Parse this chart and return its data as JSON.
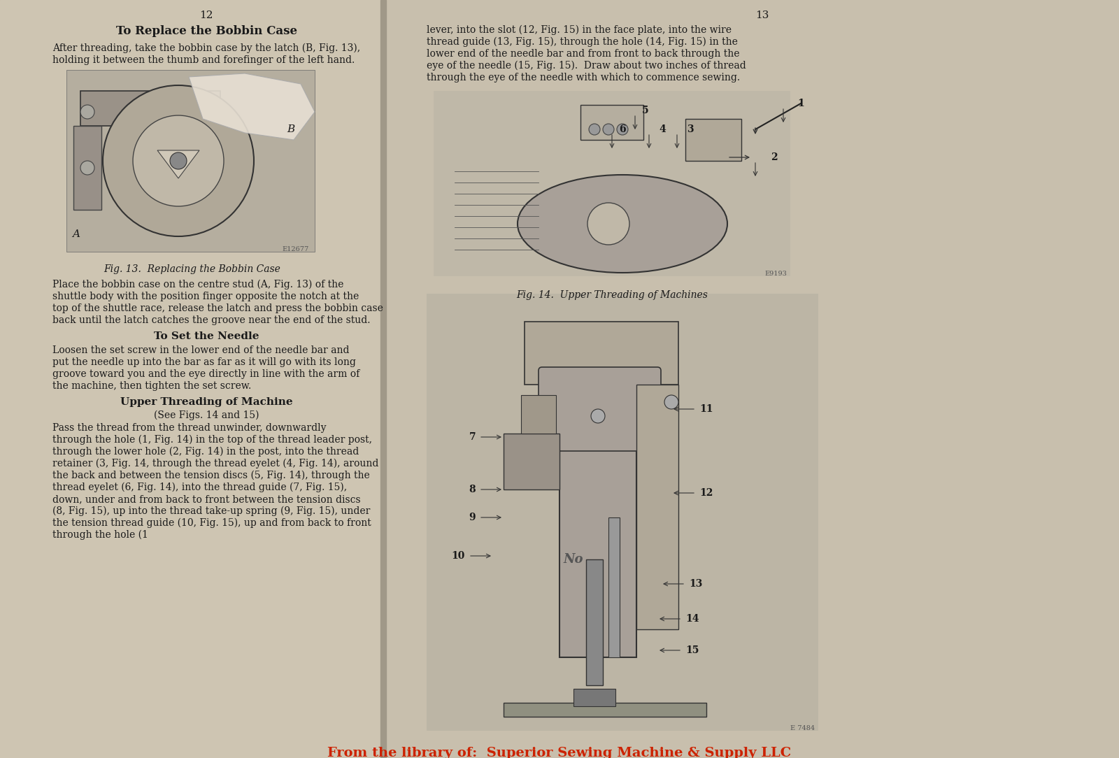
{
  "bg_color": "#c8c0b0",
  "left_page_bg": "#cec5b2",
  "right_page_bg": "#c8bfad",
  "left_page_num": "12",
  "right_page_num": "13",
  "left_title": "To Replace the Bobbin Case",
  "left_para1": "After threading, take the bobbin case by the latch (B, Fig. 13),\nholding it between the thumb and forefinger of the left hand.",
  "fig13_caption": "Fig. 13.  Replacing the Bobbin Case",
  "left_para2_body": "Place the bobbin case on the centre stud (A, Fig. 13) of the\nshuttle body with the position finger opposite the notch at the\ntop of the shuttle race, release the latch and press the bobbin case\nback until the latch catches the groove near the end of the stud.",
  "left_para3_title": "To Set the Needle",
  "left_para3": "Loosen the set screw in the lower end of the needle bar and\nput the needle up into the bar as far as it will go with its long\ngroove toward you and the eye directly in line with the arm of\nthe machine, then tighten the set screw.",
  "left_para4_title": "Upper Threading of Machine",
  "left_para4_sub": "(See Figs. 14 and 15)",
  "left_para4": "Pass the thread from the thread unwinder, downwardly\nthrough the hole (1, Fig. 14) in the top of the thread leader post,\nthrough the lower hole (2, Fig. 14) in the post, into the thread\nretainer (3, Fig. 14, through the thread eyelet (4, Fig. 14), around\nthe back and between the tension discs (5, Fig. 14), through the\nthread eyelet (6, Fig. 14), into the thread guide (7, Fig. 15),\ndown, under and from back to front between the tension discs\n(8, Fig. 15), up into the thread take-up spring (9, Fig. 15), under\nthe tension thread guide (10, Fig. 15), up and from back to front\nthrough the hole (1",
  "right_para1": "lever, into the slot (12, Fig. 15) in the face plate, into the wire\nthread guide (13, Fig. 15), through the hole (14, Fig. 15) in the\nlower end of the needle bar and from front to back through the\neye of the needle (15, Fig. 15).  Draw about two inches of thread\nthrough the eye of the needle with which to commence sewing.",
  "fig14_caption": "Fig. 14.  Upper Threading of Machines",
  "fig15_code": "E 7484",
  "fig14_code": "E9193",
  "fig13_code": "E12677",
  "watermark": "From the library of:  Superior Sewing Machine & Supply LLC",
  "font_color": "#1a1a1a",
  "watermark_color": "#cc2200"
}
